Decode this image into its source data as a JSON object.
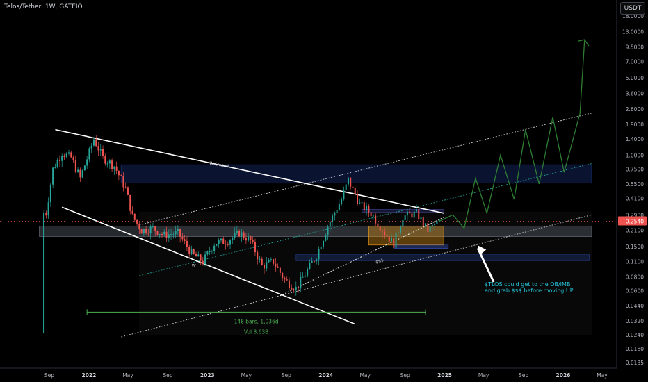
{
  "header": {
    "title": "Telos/Tether, 1W, GATEIO",
    "currency": "USDT"
  },
  "chart_data": {
    "type": "candlestick",
    "y_scale": "log",
    "yticks": [
      "18.0000",
      "13.0000",
      "9.5000",
      "7.0000",
      "5.0000",
      "3.6000",
      "2.6000",
      "1.9000",
      "1.4000",
      "1.0000",
      "0.7500",
      "0.5500",
      "0.4100",
      "0.2900",
      "0.2100",
      "0.1500",
      "0.1100",
      "0.0800",
      "0.0600",
      "0.0440",
      "0.0320",
      "0.0240",
      "0.0180",
      "0.0135"
    ],
    "ytick_values": [
      18,
      13,
      9.5,
      7,
      5,
      3.6,
      2.6,
      1.9,
      1.4,
      1,
      0.75,
      0.55,
      0.41,
      0.29,
      0.21,
      0.15,
      0.11,
      0.08,
      0.06,
      0.044,
      0.032,
      0.024,
      0.018,
      0.0135
    ],
    "xticks": [
      "Sep",
      "2022",
      "May",
      "Sep",
      "2023",
      "May",
      "Sep",
      "2024",
      "May",
      "Sep",
      "2025",
      "May",
      "Sep",
      "2026",
      "May"
    ],
    "last_price": "0.2540",
    "price_path": [
      [
        "2021-08-15",
        0.025
      ],
      [
        "2021-08-22",
        0.3
      ],
      [
        "2021-09-12",
        0.75
      ],
      [
        "2021-10-10",
        1.05
      ],
      [
        "2021-11-07",
        0.95
      ],
      [
        "2021-12-05",
        0.62
      ],
      [
        "2022-01-16",
        1.4
      ],
      [
        "2022-02-13",
        0.95
      ],
      [
        "2022-03-20",
        0.8
      ],
      [
        "2022-04-24",
        0.5
      ],
      [
        "2022-05-15",
        0.28
      ],
      [
        "2022-06-12",
        0.21
      ],
      [
        "2022-07-17",
        0.22
      ],
      [
        "2022-08-21",
        0.19
      ],
      [
        "2022-10-02",
        0.2
      ],
      [
        "2022-11-13",
        0.13
      ],
      [
        "2022-12-18",
        0.11
      ],
      [
        "2023-01-22",
        0.16
      ],
      [
        "2023-03-05",
        0.17
      ],
      [
        "2023-04-09",
        0.2
      ],
      [
        "2023-05-14",
        0.17
      ],
      [
        "2023-06-18",
        0.1
      ],
      [
        "2023-07-23",
        0.11
      ],
      [
        "2023-08-27",
        0.075
      ],
      [
        "2023-10-01",
        0.063
      ],
      [
        "2023-10-29",
        0.085
      ],
      [
        "2023-12-03",
        0.125
      ],
      [
        "2024-01-07",
        0.23
      ],
      [
        "2024-02-18",
        0.4
      ],
      [
        "2024-03-10",
        0.6
      ],
      [
        "2024-04-14",
        0.36
      ],
      [
        "2024-05-19",
        0.3
      ],
      [
        "2024-06-30",
        0.2
      ],
      [
        "2024-07-28",
        0.16
      ],
      [
        "2024-08-25",
        0.28
      ],
      [
        "2024-10-06",
        0.3
      ],
      [
        "2024-11-10",
        0.21
      ],
      [
        "2024-12-15",
        0.254
      ]
    ],
    "projection_path": [
      [
        "2024-12-15",
        0.254
      ],
      [
        "2025-01-26",
        0.29
      ],
      [
        "2025-03-02",
        0.22
      ],
      [
        "2025-04-06",
        0.62
      ],
      [
        "2025-05-11",
        0.3
      ],
      [
        "2025-06-22",
        1.0
      ],
      [
        "2025-08-03",
        0.4
      ],
      [
        "2025-09-07",
        1.7
      ],
      [
        "2025-10-19",
        0.55
      ],
      [
        "2025-11-30",
        2.2
      ],
      [
        "2026-01-04",
        0.7
      ],
      [
        "2026-02-22",
        2.4
      ],
      [
        "2026-03-08",
        11.0
      ]
    ],
    "zones": [
      {
        "name": "blue-zone-top",
        "from_date": "2022-04-10",
        "to_date": "2026-03-30",
        "y_low": 0.56,
        "y_high": 0.82,
        "color": "#1e3a8a"
      },
      {
        "name": "grey-zone",
        "from_date": "2021-08-01",
        "to_date": "2026-03-30",
        "y_low": 0.185,
        "y_high": 0.23,
        "color": "#6b7280"
      },
      {
        "name": "orange-zone",
        "from_date": "2024-05-12",
        "to_date": "2024-12-29",
        "y_low": 0.155,
        "y_high": 0.23,
        "color": "#f59e0b"
      },
      {
        "name": "blue-zone-low",
        "from_date": "2023-10-01",
        "to_date": "2026-03-23",
        "y_low": 0.112,
        "y_high": 0.128,
        "color": "#1e3a8a"
      },
      {
        "name": "blue-zone-mid",
        "from_date": "2024-07-28",
        "to_date": "2025-01-12",
        "y_low": 0.145,
        "y_high": 0.158,
        "color": "#3b5bdb"
      },
      {
        "name": "orange-band",
        "from_date": "2024-04-21",
        "to_date": "2024-12-29",
        "y_low": 0.305,
        "y_high": 0.325,
        "color": "#3b3f8f"
      }
    ],
    "trendlines": [
      {
        "name": "upper-wedge",
        "x1": "2021-09-19",
        "y1": 1.7,
        "x2": "2024-12-29",
        "y2": 0.3,
        "color": "#ffffff"
      },
      {
        "name": "lower-wedge",
        "x1": "2021-10-10",
        "y1": 0.34,
        "x2": "2024-03-31",
        "y2": 0.03,
        "color": "#ffffff"
      }
    ],
    "annotations": {
      "w_closed": "W-Closed",
      "w_mark": "W",
      "sss_mark": "$$$",
      "bars_label": "148 bars, 1,036d",
      "vol_label": "Vol 3.63B",
      "note": [
        "$TLOS could get to the OB/IMB",
        "and grab $$$ before moving UP."
      ]
    }
  }
}
